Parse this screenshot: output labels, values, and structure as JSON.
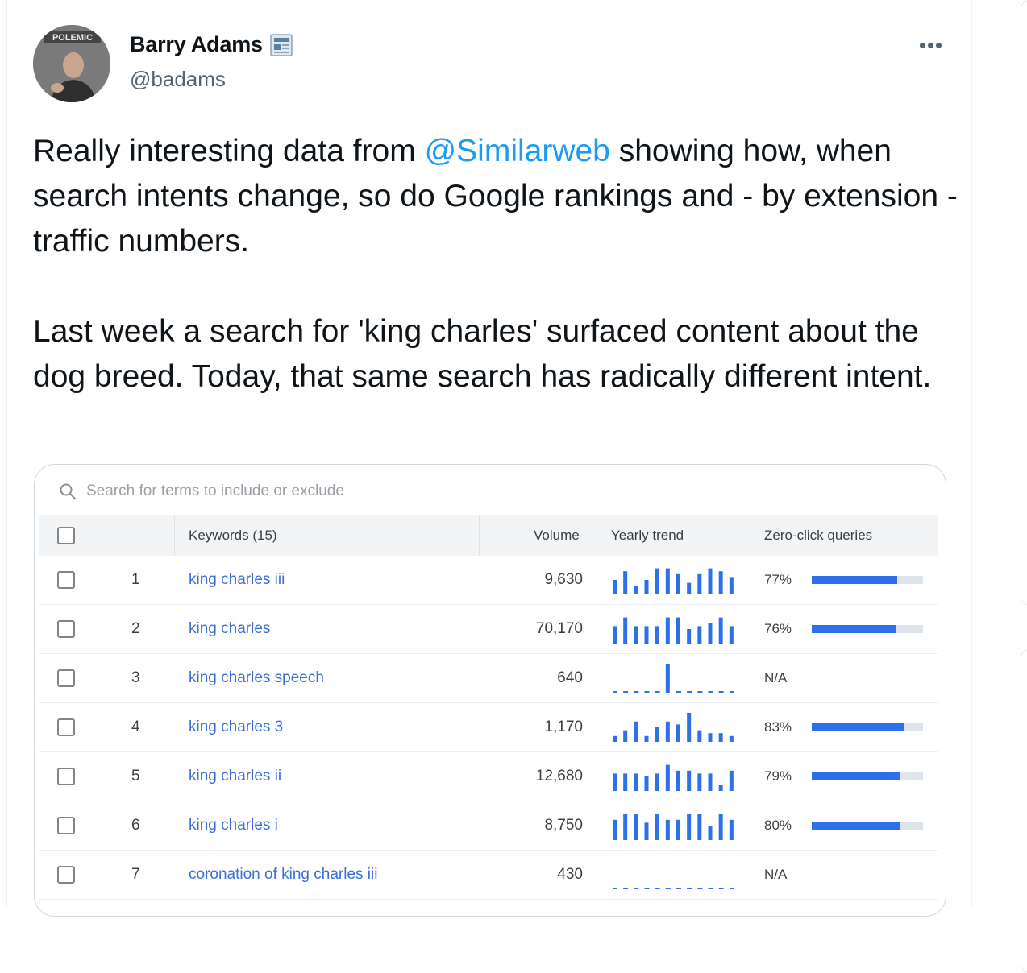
{
  "author": {
    "name": "Barry Adams",
    "handle": "@badams",
    "badge_icon": "newspaper-icon",
    "avatar_text": "POLEMIC"
  },
  "tweet": {
    "p1_before": "Really interesting data from ",
    "p1_mention": "@Similarweb",
    "p1_after": " showing how, when search intents change, so do Google rankings and - by extension - traffic numbers.",
    "p2": "Last week a search for 'king charles' surfaced content about the dog breed. Today, that same search has radically different intent."
  },
  "media": {
    "search_placeholder": "Search for terms to include or exclude",
    "headers": {
      "keywords": "Keywords (15)",
      "volume": "Volume",
      "trend": "Yearly trend",
      "zero_click": "Zero-click queries"
    },
    "accent": "#2e6fea",
    "rows": [
      {
        "rank": "1",
        "keyword": "king charles iii",
        "volume": "9,630",
        "zero_click": "77%",
        "zero_click_value": 0.77,
        "trend": [
          5,
          8,
          3,
          5,
          9,
          9,
          7,
          4,
          7,
          9,
          8,
          6
        ]
      },
      {
        "rank": "2",
        "keyword": "king charles",
        "volume": "70,170",
        "zero_click": "76%",
        "zero_click_value": 0.76,
        "trend": [
          6,
          9,
          6,
          6,
          6,
          9,
          9,
          5,
          6,
          7,
          9,
          6
        ]
      },
      {
        "rank": "3",
        "keyword": "king charles speech",
        "volume": "640",
        "zero_click": "N/A",
        "zero_click_value": null,
        "trend": [
          0,
          0,
          0,
          0,
          0,
          10,
          0,
          0,
          0,
          0,
          0,
          0
        ]
      },
      {
        "rank": "4",
        "keyword": "king charles 3",
        "volume": "1,170",
        "zero_click": "83%",
        "zero_click_value": 0.83,
        "trend": [
          2,
          4,
          7,
          2,
          5,
          7,
          6,
          10,
          4,
          3,
          3,
          2
        ]
      },
      {
        "rank": "5",
        "keyword": "king charles ii",
        "volume": "12,680",
        "zero_click": "79%",
        "zero_click_value": 0.79,
        "trend": [
          6,
          6,
          6,
          5,
          6,
          9,
          7,
          7,
          6,
          6,
          2,
          7
        ]
      },
      {
        "rank": "6",
        "keyword": "king charles i",
        "volume": "8,750",
        "zero_click": "80%",
        "zero_click_value": 0.8,
        "trend": [
          7,
          9,
          9,
          6,
          9,
          7,
          7,
          9,
          9,
          5,
          9,
          7
        ]
      },
      {
        "rank": "7",
        "keyword": "coronation of king charles iii",
        "volume": "430",
        "zero_click": "N/A",
        "zero_click_value": null,
        "trend": [
          0,
          0,
          0,
          0,
          0,
          0,
          0,
          0,
          0,
          0,
          0,
          0
        ]
      }
    ]
  }
}
